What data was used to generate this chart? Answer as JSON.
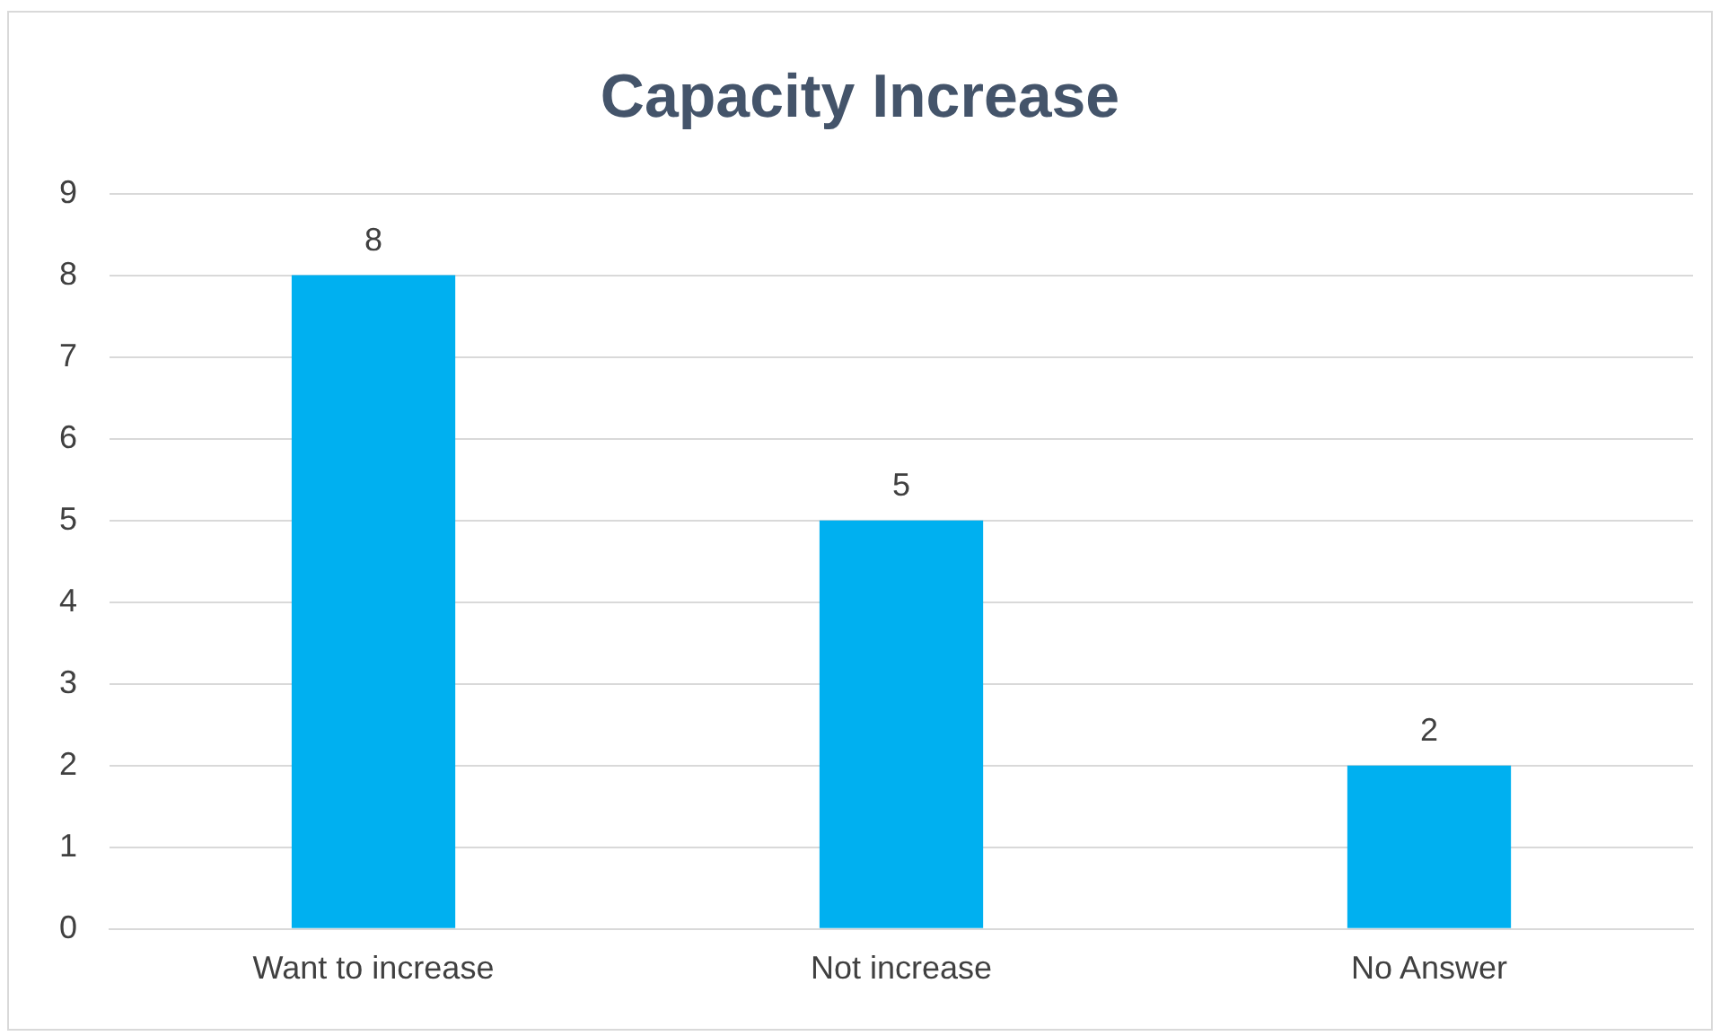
{
  "chart_data": {
    "type": "bar",
    "title": "Capacity Increase",
    "categories": [
      "Want to increase",
      "Not increase",
      "No Answer"
    ],
    "values": [
      8,
      5,
      2
    ],
    "color": "#00b0f0",
    "ylim": [
      0,
      9
    ],
    "yticks": [
      0,
      1,
      2,
      3,
      4,
      5,
      6,
      7,
      8,
      9
    ],
    "grid": "y",
    "legend": false,
    "data_labels": true
  }
}
